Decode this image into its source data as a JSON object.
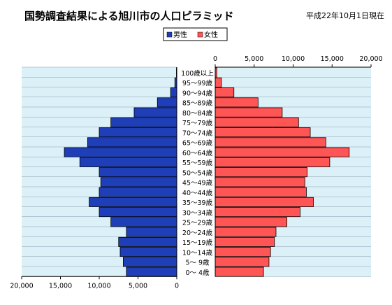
{
  "chart_data": {
    "type": "bar",
    "title": "国勢調査結果による旭川市の人口ピラミッド",
    "date_note": "平成22年10月1日現在",
    "legend": {
      "male": "男性",
      "female": "女性"
    },
    "colors": {
      "male": "#1f3fb8",
      "female": "#ff5555",
      "plot_bg": "#dcf0f8",
      "grid": "#8aa0b0"
    },
    "x_ticks_male": [
      "20,000",
      "15,000",
      "10,000",
      "5,000",
      "0"
    ],
    "x_ticks_female": [
      "0",
      "5,000",
      "10,000",
      "15,000",
      "20,000"
    ],
    "xlim": [
      0,
      20000
    ],
    "categories": [
      "100歳以上",
      "95～99歳",
      "90～94歳",
      "85～89歳",
      "80～84歳",
      "75～79歳",
      "70～74歳",
      "65～69歳",
      "60～64歳",
      "55～59歳",
      "50～54歳",
      "45～49歳",
      "40～44歳",
      "35～39歳",
      "30～34歳",
      "25～29歳",
      "20～24歳",
      "15～19歳",
      "10～14歳",
      "5～ 9歳",
      "0～ 4歳"
    ],
    "series": [
      {
        "name": "男性",
        "values": [
          50,
          250,
          800,
          2500,
          5500,
          8500,
          10000,
          11500,
          14500,
          12500,
          10000,
          9800,
          10000,
          11300,
          10000,
          8500,
          6500,
          7500,
          7300,
          6900,
          6500
        ]
      },
      {
        "name": "女性",
        "values": [
          200,
          800,
          2400,
          5500,
          8600,
          10700,
          12200,
          14200,
          17200,
          14700,
          11800,
          11500,
          11700,
          12600,
          10900,
          9200,
          7800,
          7600,
          7100,
          6900,
          6200
        ]
      }
    ]
  }
}
